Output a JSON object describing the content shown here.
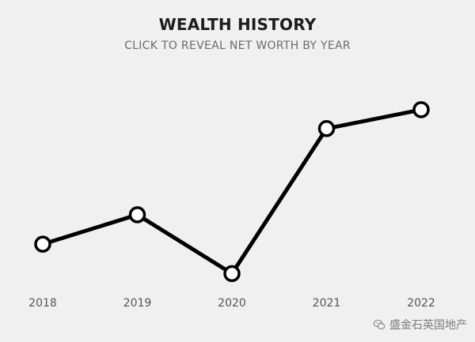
{
  "chart_data": {
    "type": "line",
    "title": "WEALTH HISTORY",
    "subtitle": "CLICK TO REVEAL NET WORTH BY YEAR",
    "categories": [
      "2018",
      "2019",
      "2020",
      "2021",
      "2022"
    ],
    "series": [
      {
        "values": [
          18,
          32,
          4,
          73,
          82
        ]
      }
    ],
    "ylim": [
      0,
      100
    ],
    "grid": false,
    "legend": "none",
    "colors": {
      "line": "#000000",
      "marker_fill": "#ffffff",
      "background": "#f0f0f0",
      "label": "#555555"
    }
  },
  "watermark": {
    "text": "盛金石英国地产",
    "icon": "wechat-icon"
  }
}
